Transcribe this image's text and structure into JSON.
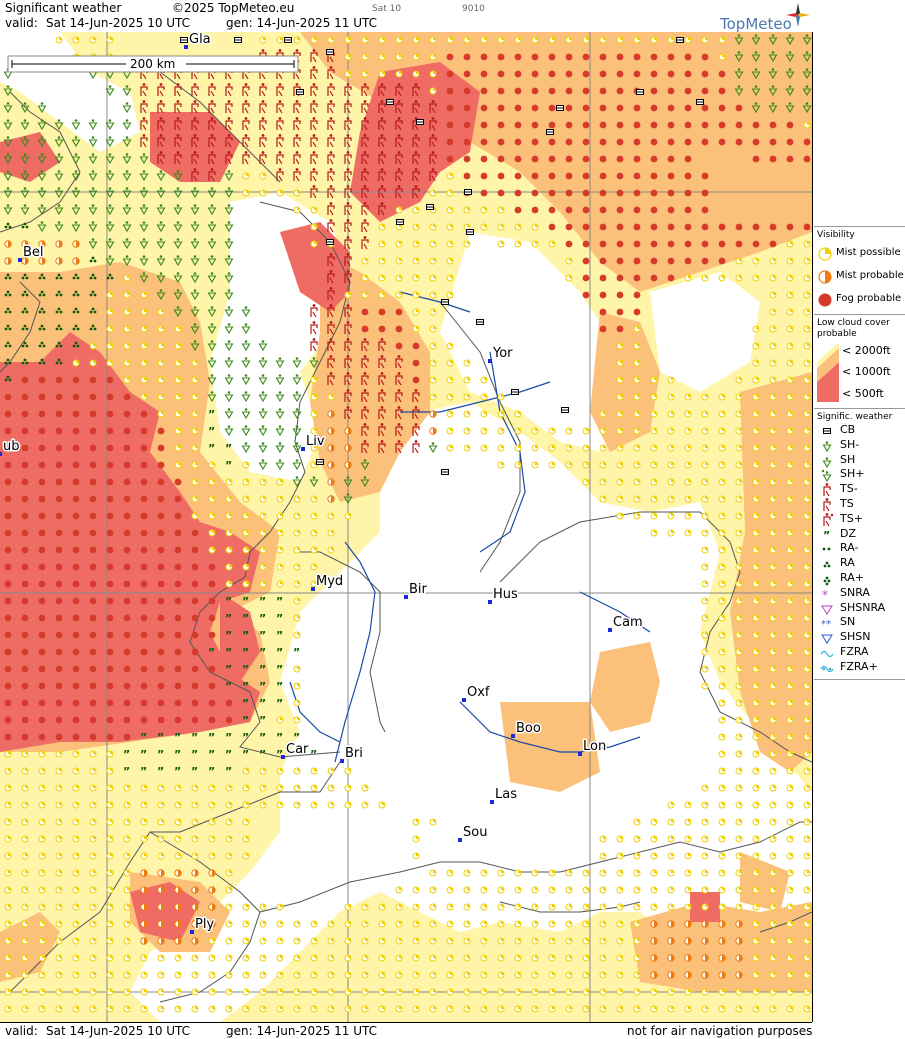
{
  "header": {
    "title": "Significant weather",
    "copyright": "©2025 TopMeteo.eu",
    "valid_label": "valid:",
    "valid_value": "Sat  14-Jun-2025  10 UTC",
    "gen_value": "gen: 14-Jun-2025 11 UTC",
    "small_day": "Sat 10",
    "small_code": "9010",
    "logo": "TopMeteo"
  },
  "footer": {
    "valid_label": "valid:",
    "valid_value": "Sat  14-Jun-2025  10 UTC",
    "gen_value": "gen: 14-Jun-2025 11 UTC",
    "disclaimer": "not for air navigation purposes"
  },
  "map": {
    "scale_label": "200 km",
    "cities": [
      {
        "name": "Gla",
        "icon": "city-marker"
      },
      {
        "name": "Bel",
        "icon": "city-marker"
      },
      {
        "name": "ub",
        "icon": "city-marker"
      },
      {
        "name": "Yor",
        "icon": "city-marker"
      },
      {
        "name": "Liv",
        "icon": "city-marker"
      },
      {
        "name": "Myd",
        "icon": "city-marker"
      },
      {
        "name": "Bir",
        "icon": "city-marker"
      },
      {
        "name": "Hus",
        "icon": "city-marker"
      },
      {
        "name": "Cam",
        "icon": "city-marker"
      },
      {
        "name": "Oxf",
        "icon": "city-marker"
      },
      {
        "name": "Boo",
        "icon": "city-marker"
      },
      {
        "name": "Lon",
        "icon": "city-marker"
      },
      {
        "name": "Car",
        "icon": "city-marker"
      },
      {
        "name": "Bri",
        "icon": "city-marker"
      },
      {
        "name": "Las",
        "icon": "city-marker"
      },
      {
        "name": "Sou",
        "icon": "city-marker"
      },
      {
        "name": "Ply",
        "icon": "city-marker"
      }
    ],
    "colors": {
      "cloud_2000": "#fff5a8",
      "cloud_1000": "#fbc079",
      "cloud_500": "#ee6c64",
      "mist": "#f0d000",
      "mist_probable": "#ee7a10",
      "fog": "#d63a2a",
      "shower": "#3a8a1a",
      "thunder": "#b81818",
      "rain": "#0a5a0a",
      "coast": "#555555",
      "river": "#1a4aa8",
      "grid": "#888888"
    }
  },
  "legend": {
    "visibility": {
      "title": "Visibility",
      "items": [
        {
          "label": "Mist possible",
          "icon": "mist-possible-icon"
        },
        {
          "label": "Mist probable",
          "icon": "mist-probable-icon"
        },
        {
          "label": "Fog probable",
          "icon": "fog-probable-icon"
        }
      ]
    },
    "low_cloud": {
      "title": "Low cloud cover probable",
      "items": [
        {
          "label": "< 2000ft"
        },
        {
          "label": "< 1000ft"
        },
        {
          "label": "<   500ft"
        }
      ]
    },
    "signific": {
      "title": "Signific. weather",
      "items": [
        {
          "label": "CB",
          "icon": "cb-icon"
        },
        {
          "label": "SH-",
          "icon": "shower-light-icon"
        },
        {
          "label": "SH",
          "icon": "shower-icon"
        },
        {
          "label": "SH+",
          "icon": "shower-heavy-icon"
        },
        {
          "label": "TS-",
          "icon": "thunderstorm-light-icon"
        },
        {
          "label": "TS",
          "icon": "thunderstorm-icon"
        },
        {
          "label": "TS+",
          "icon": "thunderstorm-heavy-icon"
        },
        {
          "label": "DZ",
          "icon": "drizzle-icon"
        },
        {
          "label": "RA-",
          "icon": "rain-light-icon"
        },
        {
          "label": "RA",
          "icon": "rain-icon"
        },
        {
          "label": "RA+",
          "icon": "rain-heavy-icon"
        },
        {
          "label": "SNRA",
          "icon": "sleet-icon"
        },
        {
          "label": "SHSNRA",
          "icon": "sleet-shower-icon"
        },
        {
          "label": "SN",
          "icon": "snow-icon"
        },
        {
          "label": "SHSN",
          "icon": "snow-shower-icon"
        },
        {
          "label": "FZRA",
          "icon": "freezing-rain-icon"
        },
        {
          "label": "FZRA+",
          "icon": "freezing-rain-heavy-icon"
        }
      ]
    }
  }
}
